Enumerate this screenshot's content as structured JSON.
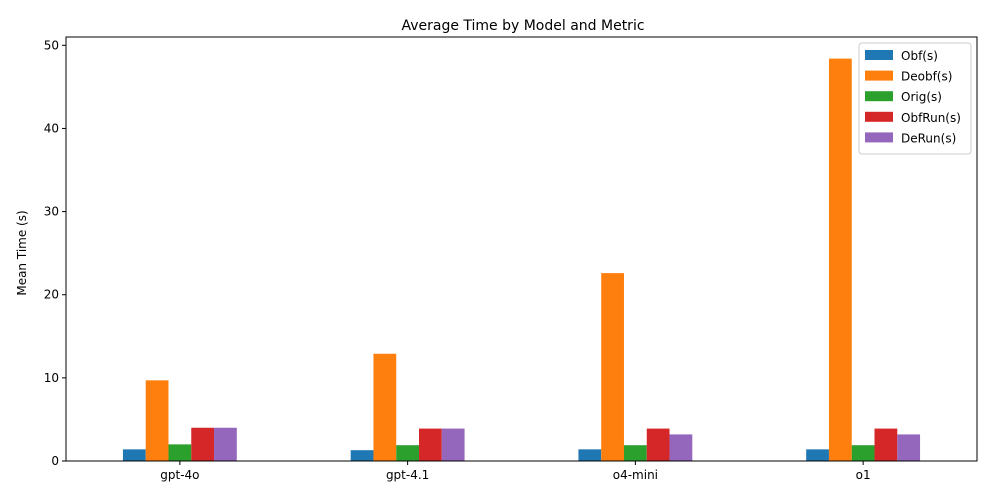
{
  "chart_data": {
    "type": "bar",
    "title": "Average Time by Model and Metric",
    "xlabel": "",
    "ylabel": "Mean Time (s)",
    "ylim": [
      0,
      51
    ],
    "yticks": [
      0,
      10,
      20,
      30,
      40,
      50
    ],
    "grid": false,
    "legend_position": "top-right",
    "categories": [
      "gpt-4o",
      "gpt-4.1",
      "o4-mini",
      "o1"
    ],
    "series": [
      {
        "name": "Obf(s)",
        "color": "#1f77b4",
        "values": [
          1.4,
          1.3,
          1.4,
          1.4
        ]
      },
      {
        "name": "Deobf(s)",
        "color": "#ff7f0e",
        "values": [
          9.7,
          12.9,
          22.6,
          48.4
        ]
      },
      {
        "name": "Orig(s)",
        "color": "#2ca02c",
        "values": [
          2.0,
          1.9,
          1.9,
          1.9
        ]
      },
      {
        "name": "ObfRun(s)",
        "color": "#d62728",
        "values": [
          4.0,
          3.9,
          3.9,
          3.9
        ]
      },
      {
        "name": "DeRun(s)",
        "color": "#9467bd",
        "values": [
          4.0,
          3.9,
          3.2,
          3.2
        ]
      }
    ]
  }
}
